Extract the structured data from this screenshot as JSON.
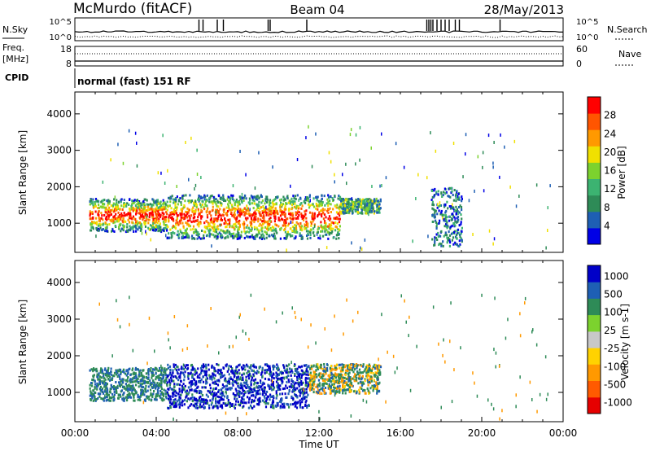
{
  "header": {
    "station": "McMurdo (fitACF)",
    "beam": "Beam 04",
    "date": "28/May/2013"
  },
  "noise_panel": {
    "left_label": "N.Sky",
    "right_label": "N.Search",
    "left_ticks": [
      "10^5",
      "10^0"
    ],
    "right_ticks": [
      "10^5",
      "10^0"
    ]
  },
  "freq_panel": {
    "left_label_line1": "Freq.",
    "left_label_line2": "[MHz]",
    "right_label": "Nave",
    "left_ticks": [
      "18",
      "8"
    ],
    "right_ticks": [
      "60",
      "0"
    ]
  },
  "cpid": {
    "label": "CPID",
    "mode": "normal (fast) 151 RF"
  },
  "x_axis": {
    "label": "Time UT",
    "ticks": [
      "00:00",
      "04:00",
      "08:00",
      "12:00",
      "16:00",
      "20:00",
      "00:00"
    ]
  },
  "colors": {
    "power_scale": [
      "#0000e6",
      "#1e5fb4",
      "#2e8b57",
      "#3cb371",
      "#7cd22e",
      "#f0e000",
      "#ff9900",
      "#ff5500",
      "#ff0000"
    ],
    "velocity_scale": [
      "#e60000",
      "#ff5a00",
      "#ff9900",
      "#ffd200",
      "#c8c8c8",
      "#7cd22e",
      "#2e8b57",
      "#1e5fb4",
      "#0000c8"
    ]
  },
  "chart_data": [
    {
      "type": "heatmap",
      "title": "Power",
      "ylabel": "Slant Range [km]",
      "xlabel": "Time UT",
      "xlim": [
        0,
        24
      ],
      "ylim": [
        200,
        4600
      ],
      "y_ticks": [
        "1000",
        "2000",
        "3000",
        "4000"
      ],
      "colorbar_label": "Power [dB]",
      "colorbar_ticks": [
        "4",
        "8",
        "12",
        "16",
        "20",
        "24",
        "28"
      ],
      "regions": [
        {
          "t0": 0.7,
          "t1": 4.5,
          "r0": 800,
          "r1": 1700,
          "level": "high"
        },
        {
          "t0": 4.5,
          "t1": 13.0,
          "r0": 600,
          "r1": 1800,
          "level": "high"
        },
        {
          "t0": 13.0,
          "t1": 15.0,
          "r0": 1300,
          "r1": 1700,
          "level": "medium"
        },
        {
          "t0": 17.5,
          "t1": 19.0,
          "r0": 400,
          "r1": 2000,
          "level": "low"
        }
      ]
    },
    {
      "type": "heatmap",
      "title": "Velocity",
      "ylabel": "Slant Range [km]",
      "xlabel": "Time UT",
      "xlim": [
        0,
        24
      ],
      "ylim": [
        200,
        4600
      ],
      "y_ticks": [
        "1000",
        "2000",
        "3000",
        "4000"
      ],
      "colorbar_label": "Velocity [m s-1]",
      "colorbar_ticks": [
        "1000",
        "500",
        "100",
        "25",
        "-25",
        "-100",
        "-500",
        "-1000"
      ],
      "regions": [
        {
          "t0": 0.7,
          "t1": 4.5,
          "r0": 800,
          "r1": 1700,
          "velocity": "positive"
        },
        {
          "t0": 4.5,
          "t1": 11.5,
          "r0": 600,
          "r1": 1800,
          "velocity": "strong positive"
        },
        {
          "t0": 11.5,
          "t1": 15.0,
          "r0": 1000,
          "r1": 1800,
          "velocity": "mixed"
        }
      ]
    }
  ]
}
